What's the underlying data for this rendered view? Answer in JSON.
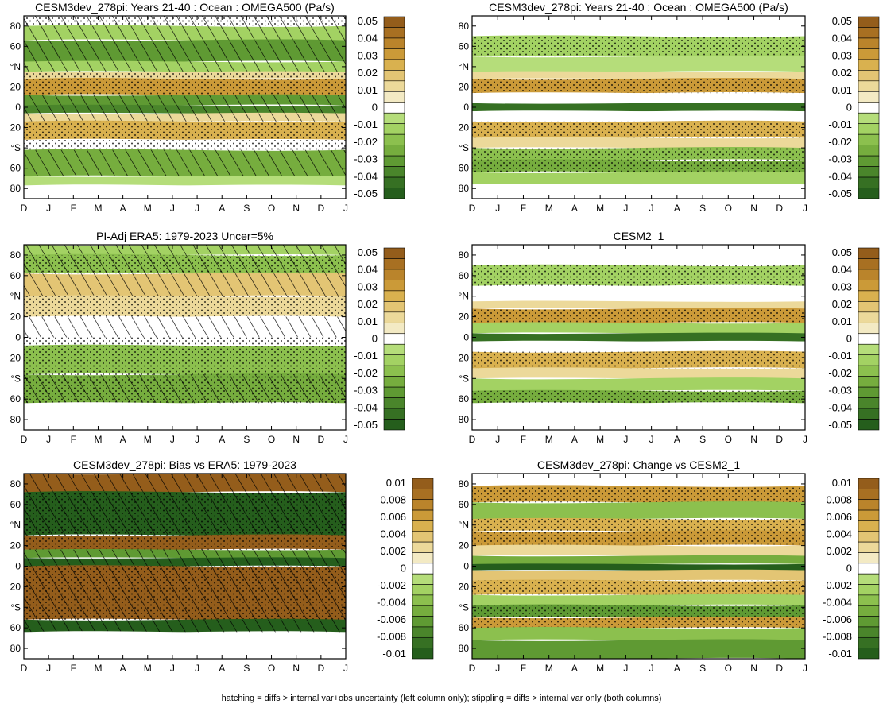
{
  "footnote": "hatching = diffs > internal var+obs uncertainty (left column only); stippling = diffs > internal var only (both columns)",
  "colors": {
    "negative": [
      "#b5dd7a",
      "#a3d263",
      "#8cc04e",
      "#76ad3e",
      "#5f9a33",
      "#4a852b",
      "#367023",
      "#255e1c"
    ],
    "neutral": "#ffffff",
    "positive": [
      "#f3eac4",
      "#ecd99a",
      "#e3c574",
      "#d9b14f",
      "#cb9a38",
      "#ba842b",
      "#a87022",
      "#945d1b"
    ]
  },
  "chart_data": [
    {
      "type": "heatmap",
      "title": "CESM3dev_278pi: Years 21-40 : Ocean : OMEGA500 (Pa/s)",
      "x_ticks": [
        "D",
        "J",
        "F",
        "M",
        "A",
        "M",
        "J",
        "J",
        "A",
        "S",
        "O",
        "N",
        "D",
        "J"
      ],
      "y_ticks": [
        "80",
        "60",
        "°N",
        "20",
        "0",
        "20",
        "°S",
        "60",
        "80"
      ],
      "colorbar": [
        "0.05",
        "0.04",
        "0.03",
        "0.02",
        "0.01",
        "0",
        "-0.01",
        "-0.02",
        "-0.03",
        "-0.04",
        "-0.05"
      ],
      "hatching": true,
      "bands": [
        {
          "lat_n": 90,
          "lat_s": 80,
          "value": 0.0,
          "hatch": true,
          "stipple": true
        },
        {
          "lat_n": 80,
          "lat_s": 66,
          "value": -0.01,
          "hatch": true
        },
        {
          "lat_n": 66,
          "lat_s": 45,
          "value": -0.025,
          "hatch": true
        },
        {
          "lat_n": 45,
          "lat_s": 35,
          "value": -0.008,
          "hatch": true
        },
        {
          "lat_n": 35,
          "lat_s": 28,
          "value": 0.008,
          "stipple": true
        },
        {
          "lat_n": 28,
          "lat_s": 12,
          "value": 0.03,
          "stipple": true
        },
        {
          "lat_n": 12,
          "lat_s": 2,
          "value": -0.025,
          "hatch": true
        },
        {
          "lat_n": 2,
          "lat_s": -6,
          "value": -0.035,
          "hatch": true
        },
        {
          "lat_n": -6,
          "lat_s": -14,
          "value": 0.008,
          "hatch": true
        },
        {
          "lat_n": -14,
          "lat_s": -32,
          "value": 0.02,
          "stipple": true
        },
        {
          "lat_n": -32,
          "lat_s": -42,
          "value": 0.005,
          "stipple": true
        },
        {
          "lat_n": -42,
          "lat_s": -68,
          "value": -0.02,
          "hatch": true
        },
        {
          "lat_n": -68,
          "lat_s": -77,
          "value": -0.006
        },
        {
          "lat_n": -77,
          "lat_s": -90,
          "value": 0.0
        }
      ]
    },
    {
      "type": "heatmap",
      "title": "CESM3dev_278pi: Years 21-40 : Ocean : OMEGA500 (Pa/s)",
      "x_ticks": [
        "D",
        "J",
        "F",
        "M",
        "A",
        "M",
        "J",
        "J",
        "A",
        "S",
        "O",
        "N",
        "D",
        "J"
      ],
      "y_ticks": [
        "80",
        "60",
        "°N",
        "20",
        "0",
        "20",
        "°S",
        "60",
        "80"
      ],
      "colorbar": [
        "0.05",
        "0.04",
        "0.03",
        "0.02",
        "0.01",
        "0",
        "-0.01",
        "-0.02",
        "-0.03",
        "-0.04",
        "-0.05"
      ],
      "hatching": false,
      "bands": [
        {
          "lat_n": 90,
          "lat_s": 70,
          "value": 0.0
        },
        {
          "lat_n": 70,
          "lat_s": 50,
          "value": -0.012,
          "stipple": true
        },
        {
          "lat_n": 50,
          "lat_s": 35,
          "value": -0.006
        },
        {
          "lat_n": 35,
          "lat_s": 28,
          "value": 0.01
        },
        {
          "lat_n": 28,
          "lat_s": 14,
          "value": 0.028,
          "stipple": true
        },
        {
          "lat_n": 14,
          "lat_s": 4,
          "value": 0.003
        },
        {
          "lat_n": 4,
          "lat_s": -4,
          "value": -0.04
        },
        {
          "lat_n": -4,
          "lat_s": -14,
          "value": 0.005
        },
        {
          "lat_n": -14,
          "lat_s": -30,
          "value": 0.022,
          "stipple": true
        },
        {
          "lat_n": -30,
          "lat_s": -40,
          "value": 0.008
        },
        {
          "lat_n": -40,
          "lat_s": -52,
          "value": -0.015,
          "stipple": true
        },
        {
          "lat_n": -52,
          "lat_s": -64,
          "value": -0.02,
          "stipple": true
        },
        {
          "lat_n": -64,
          "lat_s": -76,
          "value": -0.008
        },
        {
          "lat_n": -76,
          "lat_s": -90,
          "value": 0.0
        }
      ]
    },
    {
      "type": "heatmap",
      "title": "PI-Adj ERA5: 1979-2023 Uncer=5%",
      "x_ticks": [
        "D",
        "J",
        "F",
        "M",
        "A",
        "M",
        "J",
        "J",
        "A",
        "S",
        "O",
        "N",
        "D",
        "J"
      ],
      "y_ticks": [
        "80",
        "60",
        "°N",
        "20",
        "0",
        "20",
        "°S",
        "60",
        "80"
      ],
      "colorbar": [
        "0.05",
        "0.04",
        "0.03",
        "0.02",
        "0.01",
        "0",
        "-0.01",
        "-0.02",
        "-0.03",
        "-0.04",
        "-0.05"
      ],
      "hatching": true,
      "bands": [
        {
          "lat_n": 90,
          "lat_s": 80,
          "value": -0.01,
          "hatch": true
        },
        {
          "lat_n": 80,
          "lat_s": 62,
          "value": -0.015,
          "hatch": true,
          "stipple": true
        },
        {
          "lat_n": 62,
          "lat_s": 40,
          "value": 0.015,
          "hatch": true
        },
        {
          "lat_n": 40,
          "lat_s": 20,
          "value": 0.008,
          "stipple": true
        },
        {
          "lat_n": 20,
          "lat_s": 8,
          "value": 0.004,
          "hatch": true
        },
        {
          "lat_n": 8,
          "lat_s": 0,
          "value": 0.0,
          "hatch": true
        },
        {
          "lat_n": 0,
          "lat_s": -8,
          "value": -0.004,
          "stipple": true
        },
        {
          "lat_n": -8,
          "lat_s": -36,
          "value": -0.014,
          "stipple": true
        },
        {
          "lat_n": -36,
          "lat_s": -64,
          "value": -0.02,
          "hatch": true,
          "stipple": true
        },
        {
          "lat_n": -64,
          "lat_s": -90,
          "value": 0.0
        }
      ]
    },
    {
      "type": "heatmap",
      "title": "CESM2_1",
      "x_ticks": [
        "D",
        "J",
        "F",
        "M",
        "A",
        "M",
        "J",
        "J",
        "A",
        "S",
        "O",
        "N",
        "D",
        "J"
      ],
      "y_ticks": [
        "80",
        "60",
        "°N",
        "20",
        "0",
        "20",
        "°S",
        "60",
        "80"
      ],
      "colorbar": [
        "0.05",
        "0.04",
        "0.03",
        "0.02",
        "0.01",
        "0",
        "-0.01",
        "-0.02",
        "-0.03",
        "-0.04",
        "-0.05"
      ],
      "hatching": false,
      "bands": [
        {
          "lat_n": 90,
          "lat_s": 70,
          "value": 0.0
        },
        {
          "lat_n": 70,
          "lat_s": 50,
          "value": -0.012,
          "stipple": true
        },
        {
          "lat_n": 50,
          "lat_s": 35,
          "value": -0.005
        },
        {
          "lat_n": 35,
          "lat_s": 28,
          "value": 0.008
        },
        {
          "lat_n": 28,
          "lat_s": 14,
          "value": 0.025,
          "stipple": true
        },
        {
          "lat_n": 14,
          "lat_s": 4,
          "value": -0.01
        },
        {
          "lat_n": 4,
          "lat_s": -4,
          "value": -0.038
        },
        {
          "lat_n": -4,
          "lat_s": -14,
          "value": 0.004
        },
        {
          "lat_n": -14,
          "lat_s": -30,
          "value": 0.022,
          "stipple": true
        },
        {
          "lat_n": -30,
          "lat_s": -40,
          "value": 0.008
        },
        {
          "lat_n": -40,
          "lat_s": -52,
          "value": -0.012
        },
        {
          "lat_n": -52,
          "lat_s": -64,
          "value": -0.02,
          "stipple": true
        },
        {
          "lat_n": -64,
          "lat_s": -90,
          "value": 0.0
        }
      ]
    },
    {
      "type": "heatmap",
      "title": "CESM3dev_278pi: Bias vs ERA5: 1979-2023",
      "x_ticks": [
        "D",
        "J",
        "F",
        "M",
        "A",
        "M",
        "J",
        "J",
        "A",
        "S",
        "O",
        "N",
        "D",
        "J"
      ],
      "y_ticks": [
        "80",
        "60",
        "°N",
        "20",
        "0",
        "20",
        "°S",
        "60",
        "80"
      ],
      "colorbar": [
        "0.01",
        "0.008",
        "0.006",
        "0.004",
        "0.002",
        "0",
        "-0.002",
        "-0.004",
        "-0.006",
        "-0.008",
        "-0.01"
      ],
      "hatching": true,
      "bands": [
        {
          "lat_n": 90,
          "lat_s": 72,
          "value": 0.01,
          "hatch": true
        },
        {
          "lat_n": 72,
          "lat_s": 30,
          "value": -0.01,
          "hatch": true,
          "stipple": true
        },
        {
          "lat_n": 30,
          "lat_s": 16,
          "value": 0.01,
          "stipple": true
        },
        {
          "lat_n": 16,
          "lat_s": 8,
          "value": -0.005,
          "hatch": true
        },
        {
          "lat_n": 8,
          "lat_s": 0,
          "value": -0.01,
          "hatch": true
        },
        {
          "lat_n": 0,
          "lat_s": -52,
          "value": 0.01,
          "hatch": true,
          "stipple": true
        },
        {
          "lat_n": -52,
          "lat_s": -64,
          "value": -0.01,
          "hatch": true
        },
        {
          "lat_n": -64,
          "lat_s": -90,
          "value": 0.0
        }
      ]
    },
    {
      "type": "heatmap",
      "title": "CESM3dev_278pi: Change vs CESM2_1",
      "x_ticks": [
        "D",
        "J",
        "F",
        "M",
        "A",
        "M",
        "J",
        "J",
        "A",
        "S",
        "O",
        "N",
        "D",
        "J"
      ],
      "y_ticks": [
        "80",
        "60",
        "°N",
        "20",
        "0",
        "20",
        "°S",
        "60",
        "80"
      ],
      "colorbar": [
        "0.01",
        "0.008",
        "0.006",
        "0.004",
        "0.002",
        "0",
        "-0.002",
        "-0.004",
        "-0.006",
        "-0.008",
        "-0.01"
      ],
      "hatching": false,
      "bands": [
        {
          "lat_n": 90,
          "lat_s": 78,
          "value": 0.0
        },
        {
          "lat_n": 78,
          "lat_s": 62,
          "value": 0.005,
          "stipple": true
        },
        {
          "lat_n": 62,
          "lat_s": 46,
          "value": -0.003
        },
        {
          "lat_n": 46,
          "lat_s": 34,
          "value": 0.004,
          "stipple": true
        },
        {
          "lat_n": 34,
          "lat_s": 20,
          "value": 0.006,
          "stipple": true
        },
        {
          "lat_n": 20,
          "lat_s": 10,
          "value": 0.002
        },
        {
          "lat_n": 10,
          "lat_s": 2,
          "value": -0.004
        },
        {
          "lat_n": 2,
          "lat_s": -4,
          "value": -0.009
        },
        {
          "lat_n": -4,
          "lat_s": -14,
          "value": 0.003
        },
        {
          "lat_n": -14,
          "lat_s": -28,
          "value": 0.004,
          "stipple": true
        },
        {
          "lat_n": -28,
          "lat_s": -38,
          "value": -0.002
        },
        {
          "lat_n": -38,
          "lat_s": -50,
          "value": -0.005,
          "stipple": true
        },
        {
          "lat_n": -50,
          "lat_s": -60,
          "value": 0.005,
          "stipple": true
        },
        {
          "lat_n": -60,
          "lat_s": -72,
          "value": -0.003
        },
        {
          "lat_n": -72,
          "lat_s": -90,
          "value": -0.006
        }
      ]
    }
  ]
}
